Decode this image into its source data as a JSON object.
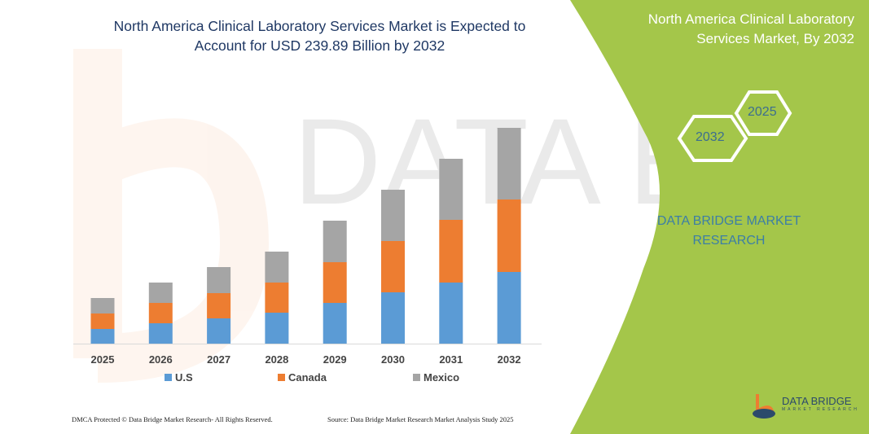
{
  "header": {
    "title": "North America Clinical Laboratory Services Market is Expected to Account for USD 239.89 Billion by 2032"
  },
  "side_panel": {
    "title": "North America Clinical Laboratory Services Market, By 2032",
    "hex_labels": [
      "2032",
      "2025"
    ],
    "brand_text": "DATA BRIDGE MARKET RESEARCH",
    "logo_text": "DATA BRIDGE",
    "logo_subtext": "MARKET RESEARCH",
    "panel_color": "#a4c64a"
  },
  "footer": {
    "copyright": "DMCA Protected © Data Bridge Market Research-  All Rights Reserved.",
    "source": "Source: Data Bridge Market Research  Market Analysis Study 2025"
  },
  "chart_data": {
    "type": "bar",
    "stacked": true,
    "title": "North America Clinical Laboratory Services Market is Expected to Account for USD 239.89 Billion by 2032",
    "xlabel": "",
    "ylabel": "",
    "categories": [
      "2025",
      "2026",
      "2027",
      "2028",
      "2029",
      "2030",
      "2031",
      "2032"
    ],
    "series": [
      {
        "name": "U.S",
        "color": "#5b9bd5",
        "values": [
          18,
          25,
          31,
          38,
          50,
          63,
          75,
          88
        ]
      },
      {
        "name": "Canada",
        "color": "#ed7d31",
        "values": [
          19,
          25,
          31,
          37,
          50,
          63,
          77,
          89
        ]
      },
      {
        "name": "Mexico",
        "color": "#a5a5a5",
        "values": [
          19,
          25,
          32,
          38,
          51,
          63,
          75,
          88
        ]
      }
    ],
    "y_axis_shown": false,
    "grid": false,
    "legend": "bottom"
  }
}
